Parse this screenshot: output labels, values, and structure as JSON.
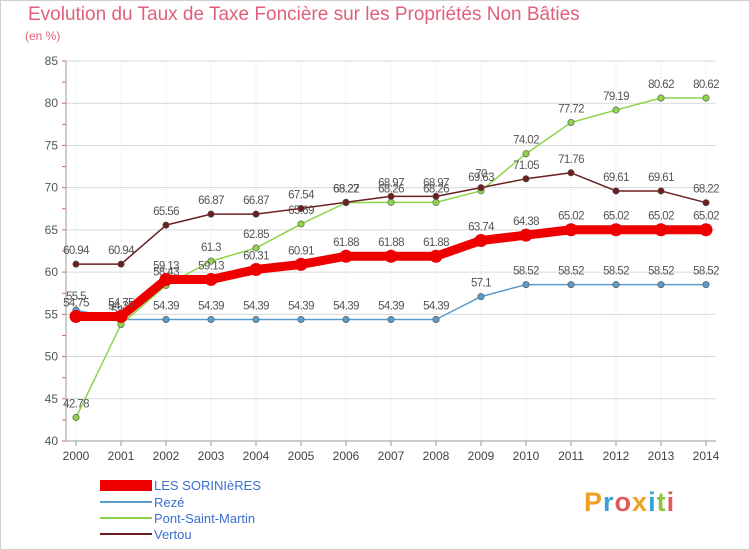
{
  "title": "Evolution du Taux de Taxe Foncière sur les Propriétés Non Bâties",
  "unit": "(en %)",
  "logo": "Proxiti",
  "logo_colors": [
    "#f0a020",
    "#3aa0d8",
    "#e05a5a",
    "#f0a020",
    "#3aa0d8",
    "#8cc63f",
    "#e05a5a"
  ],
  "chart_data": {
    "type": "line",
    "title": "Evolution du Taux de Taxe Foncière sur les Propriétés Non Bâties",
    "ylabel": "(en %)",
    "xlabel": "",
    "ylim": [
      40,
      85
    ],
    "yticks": [
      40,
      45,
      50,
      55,
      60,
      65,
      70,
      75,
      80,
      85
    ],
    "grid": true,
    "categories": [
      "2000",
      "2001",
      "2002",
      "2003",
      "2004",
      "2005",
      "2006",
      "2007",
      "2008",
      "2009",
      "2010",
      "2011",
      "2012",
      "2013",
      "2014"
    ],
    "series": [
      {
        "name": "LES SORINIèRES",
        "color": "#ee0000",
        "values": [
          54.75,
          54.75,
          59.13,
          59.13,
          60.31,
          60.91,
          61.88,
          61.88,
          61.88,
          63.74,
          64.38,
          65.02,
          65.02,
          65.02,
          65.02
        ],
        "labels": [
          "54.75",
          "54.75",
          "59.13",
          "59.13",
          "60.31",
          "60.91",
          "61.88",
          "61.88",
          "61.88",
          "63.74",
          "64.38",
          "65.02",
          "65.02",
          "65.02",
          "65.02"
        ]
      },
      {
        "name": "Rezé",
        "color": "#5b9bc9",
        "values": [
          55.5,
          54.39,
          54.39,
          54.39,
          54.39,
          54.39,
          54.39,
          54.39,
          54.39,
          57.1,
          58.52,
          58.52,
          58.52,
          58.52,
          58.52
        ],
        "labels": [
          "55.5",
          "54.39",
          "54.39",
          "54.39",
          "54.39",
          "54.39",
          "54.39",
          "54.39",
          "54.39",
          "57.1",
          "58.52",
          "58.52",
          "58.52",
          "58.52",
          "58.52"
        ]
      },
      {
        "name": "Pont-Saint-Martin",
        "color": "#8ed44a",
        "values": [
          42.78,
          53.8,
          58.43,
          61.3,
          62.85,
          65.69,
          68.22,
          68.26,
          68.26,
          69.63,
          74.02,
          77.72,
          79.19,
          80.62,
          80.62
        ],
        "labels": [
          "42.78",
          "53.8",
          "58.43",
          "61.3",
          "62.85",
          "65.69",
          "68.22",
          "68.26",
          "68.26",
          "69.63",
          "74.02",
          "77.72",
          "79.19",
          "80.62",
          "80.62"
        ]
      },
      {
        "name": "Vertou",
        "color": "#6b1f1f",
        "values": [
          60.94,
          60.94,
          65.56,
          66.87,
          66.87,
          67.54,
          68.27,
          68.97,
          68.97,
          70.0,
          71.05,
          71.76,
          69.61,
          69.61,
          68.22
        ],
        "labels": [
          "60.94",
          "60.94",
          "65.56",
          "66.87",
          "66.87",
          "67.54",
          "68.27",
          "68.97",
          "68.97",
          "70",
          "71.05",
          "71.76",
          "69.61",
          "69.61",
          "68.22"
        ]
      }
    ]
  }
}
